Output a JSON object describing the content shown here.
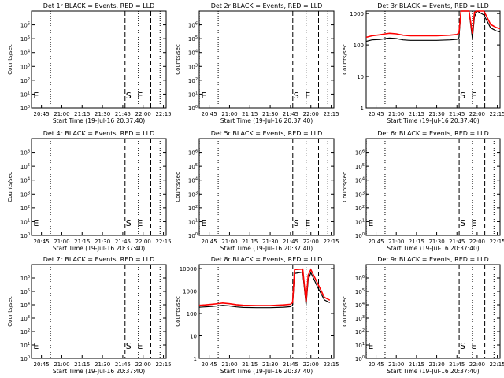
{
  "figure": {
    "panel_titles": [
      "Det 1r BLACK = Events, RED = LLD",
      "Det 2r BLACK = Events, RED = LLD",
      "Det 3r BLACK = Events, RED = LLD",
      "Det 4r BLACK = Events, RED = LLD",
      "Det 5r BLACK = Events, RED = LLD",
      "Det 6r BLACK = Events, RED = LLD",
      "Det 7r BLACK = Events, RED = LLD",
      "Det 8r BLACK = Events, RED = LLD",
      "Det 9r BLACK = Events, RED = LLD"
    ],
    "xlabel": "Start Time (19-Jul-16 20:37:40)",
    "ylabel": "Counts/sec",
    "colors": {
      "events": "#000000",
      "lld": "#ff0000",
      "axes": "#000000",
      "background": "#ffffff"
    },
    "marker_labels": {
      "start": "S",
      "end": "E"
    }
  },
  "chart_data": [
    {
      "panel": "Det 1r",
      "type": "line",
      "yscale": "log",
      "title": "Det 1r BLACK = Events, RED = LLD",
      "xlabel": "Start Time (19-Jul-16 20:37:40)",
      "ylabel": "Counts/sec",
      "xlim": [
        "20:37:40",
        "22:17:00"
      ],
      "xticks": [
        "20:45",
        "21:00",
        "21:15",
        "21:30",
        "21:45",
        "22:00",
        "22:15"
      ],
      "ylim": [
        1,
        10000000
      ],
      "yticks": [
        "10^0",
        "10^1",
        "10^2",
        "10^3",
        "10^4",
        "10^5",
        "10^6"
      ],
      "dotted_lines": [
        "20:37:45",
        "20:51:40",
        "21:56:30",
        "22:12:30"
      ],
      "dashed_lines": [
        "21:46:40",
        "22:05:40"
      ],
      "markers": [
        {
          "label": "S",
          "x": "21:46:40"
        },
        {
          "label": "E",
          "x": "21:55:10"
        },
        {
          "label": "E",
          "x": "20:38:30"
        }
      ],
      "series": []
    },
    {
      "panel": "Det 2r",
      "type": "line",
      "yscale": "log",
      "title": "Det 2r BLACK = Events, RED = LLD",
      "xlabel": "Start Time (19-Jul-16 20:37:40)",
      "ylabel": "Counts/sec",
      "xlim": [
        "20:37:40",
        "22:17:00"
      ],
      "xticks": [
        "20:45",
        "21:00",
        "21:15",
        "21:30",
        "21:45",
        "22:00",
        "22:15"
      ],
      "ylim": [
        1,
        10000000
      ],
      "yticks": [
        "10^0",
        "10^1",
        "10^2",
        "10^3",
        "10^4",
        "10^5",
        "10^6"
      ],
      "dotted_lines": [
        "20:37:45",
        "20:51:40",
        "21:56:30",
        "22:12:30"
      ],
      "dashed_lines": [
        "21:46:40",
        "22:05:40"
      ],
      "markers": [
        {
          "label": "S",
          "x": "21:46:40"
        },
        {
          "label": "E",
          "x": "21:55:10"
        },
        {
          "label": "E",
          "x": "20:38:30"
        }
      ],
      "series": []
    },
    {
      "panel": "Det 3r",
      "type": "line",
      "yscale": "log",
      "title": "Det 3r BLACK = Events, RED = LLD",
      "xlabel": "Start Time (19-Jul-16 20:37:40)",
      "ylabel": "Counts/sec",
      "xlim": [
        "20:37:40",
        "22:17:00"
      ],
      "xticks": [
        "20:45",
        "21:00",
        "21:15",
        "21:30",
        "21:45",
        "22:00",
        "22:15"
      ],
      "ylim": [
        1,
        1200
      ],
      "yticks": [
        "1",
        "10",
        "100",
        "1000"
      ],
      "dotted_lines": [
        "20:51:40",
        "21:56:30"
      ],
      "dashed_lines": [
        "21:46:40",
        "22:05:40"
      ],
      "markers": [
        {
          "label": "S",
          "x": "21:46:40"
        },
        {
          "label": "E",
          "x": "21:55:10"
        }
      ],
      "series": [
        {
          "name": "Events",
          "color": "#000000",
          "x": [
            "20:37:40",
            "20:42:00",
            "20:48:00",
            "20:52:00",
            "20:55:00",
            "21:00:00",
            "21:05:00",
            "21:10:00",
            "21:20:00",
            "21:30:00",
            "21:40:00",
            "21:45:00",
            "21:46:30",
            "21:48:00",
            "21:54:00",
            "21:56:30",
            "21:58:00",
            "22:00:00",
            "22:05:00",
            "22:10:00",
            "22:14:00",
            "22:17:00"
          ],
          "y": [
            130,
            145,
            150,
            160,
            165,
            160,
            145,
            140,
            140,
            140,
            145,
            150,
            170,
            1250,
            1250,
            160,
            800,
            1250,
            900,
            350,
            280,
            260
          ]
        },
        {
          "name": "LLD",
          "color": "#ff0000",
          "x": [
            "20:37:40",
            "20:42:00",
            "20:48:00",
            "20:52:00",
            "20:55:00",
            "21:00:00",
            "21:05:00",
            "21:10:00",
            "21:20:00",
            "21:30:00",
            "21:40:00",
            "21:45:00",
            "21:46:30",
            "21:48:00",
            "21:54:00",
            "21:56:30",
            "21:58:00",
            "22:00:00",
            "22:05:00",
            "22:10:00",
            "22:14:00",
            "22:17:00"
          ],
          "y": [
            175,
            195,
            210,
            225,
            235,
            225,
            205,
            195,
            195,
            195,
            205,
            215,
            240,
            1250,
            1250,
            230,
            1100,
            1250,
            1250,
            450,
            360,
            330
          ]
        }
      ]
    },
    {
      "panel": "Det 4r",
      "type": "line",
      "yscale": "log",
      "title": "Det 4r BLACK = Events, RED = LLD",
      "xlabel": "Start Time (19-Jul-16 20:37:40)",
      "ylabel": "Counts/sec",
      "xlim": [
        "20:37:40",
        "22:17:00"
      ],
      "xticks": [
        "20:45",
        "21:00",
        "21:15",
        "21:30",
        "21:45",
        "22:00",
        "22:15"
      ],
      "ylim": [
        1,
        10000000
      ],
      "yticks": [
        "10^0",
        "10^1",
        "10^2",
        "10^3",
        "10^4",
        "10^5",
        "10^6"
      ],
      "dotted_lines": [
        "20:37:45",
        "20:51:40",
        "21:56:30",
        "22:12:30"
      ],
      "dashed_lines": [
        "21:46:40",
        "22:05:40"
      ],
      "markers": [
        {
          "label": "S",
          "x": "21:46:40"
        },
        {
          "label": "E",
          "x": "21:55:10"
        },
        {
          "label": "E",
          "x": "20:38:30"
        }
      ],
      "series": []
    },
    {
      "panel": "Det 5r",
      "type": "line",
      "yscale": "log",
      "title": "Det 5r BLACK = Events, RED = LLD",
      "xlabel": "Start Time (19-Jul-16 20:37:40)",
      "ylabel": "Counts/sec",
      "xlim": [
        "20:37:40",
        "22:17:00"
      ],
      "xticks": [
        "20:45",
        "21:00",
        "21:15",
        "21:30",
        "21:45",
        "22:00",
        "22:15"
      ],
      "ylim": [
        1,
        10000000
      ],
      "yticks": [
        "10^0",
        "10^1",
        "10^2",
        "10^3",
        "10^4",
        "10^5",
        "10^6"
      ],
      "dotted_lines": [
        "20:37:45",
        "20:51:40",
        "21:56:30",
        "22:12:30"
      ],
      "dashed_lines": [
        "21:46:40",
        "22:05:40"
      ],
      "markers": [
        {
          "label": "S",
          "x": "21:46:40"
        },
        {
          "label": "E",
          "x": "21:55:10"
        },
        {
          "label": "E",
          "x": "20:38:30"
        }
      ],
      "series": []
    },
    {
      "panel": "Det 6r",
      "type": "line",
      "yscale": "log",
      "title": "Det 6r BLACK = Events, RED = LLD",
      "xlabel": "Start Time (19-Jul-16 20:37:40)",
      "ylabel": "Counts/sec",
      "xlim": [
        "20:37:40",
        "22:17:00"
      ],
      "xticks": [
        "20:45",
        "21:00",
        "21:15",
        "21:30",
        "21:45",
        "22:00",
        "22:15"
      ],
      "ylim": [
        1,
        10000000
      ],
      "yticks": [
        "10^0",
        "10^1",
        "10^2",
        "10^3",
        "10^4",
        "10^5",
        "10^6"
      ],
      "dotted_lines": [
        "20:37:45",
        "20:51:40",
        "21:56:30",
        "22:12:30"
      ],
      "dashed_lines": [
        "21:46:40",
        "22:05:40"
      ],
      "markers": [
        {
          "label": "S",
          "x": "21:46:40"
        },
        {
          "label": "E",
          "x": "21:55:10"
        },
        {
          "label": "E",
          "x": "20:38:30"
        }
      ],
      "series": []
    },
    {
      "panel": "Det 7r",
      "type": "line",
      "yscale": "log",
      "title": "Det 7r BLACK = Events, RED = LLD",
      "xlabel": "Start Time (19-Jul-16 20:37:40)",
      "ylabel": "Counts/sec",
      "xlim": [
        "20:37:40",
        "22:17:00"
      ],
      "xticks": [
        "20:45",
        "21:00",
        "21:15",
        "21:30",
        "21:45",
        "22:00",
        "22:15"
      ],
      "ylim": [
        1,
        10000000
      ],
      "yticks": [
        "10^0",
        "10^1",
        "10^2",
        "10^3",
        "10^4",
        "10^5",
        "10^6"
      ],
      "dotted_lines": [
        "20:37:45",
        "20:51:40",
        "21:56:30",
        "22:12:30"
      ],
      "dashed_lines": [
        "21:46:40",
        "22:05:40"
      ],
      "markers": [
        {
          "label": "S",
          "x": "21:46:40"
        },
        {
          "label": "E",
          "x": "21:55:10"
        },
        {
          "label": "E",
          "x": "20:38:30"
        }
      ],
      "series": []
    },
    {
      "panel": "Det 8r",
      "type": "line",
      "yscale": "log",
      "title": "Det 8r BLACK = Events, RED = LLD",
      "xlabel": "Start Time (19-Jul-16 20:37:40)",
      "ylabel": "Counts/sec",
      "xlim": [
        "20:37:40",
        "22:17:00"
      ],
      "xticks": [
        "20:45",
        "21:00",
        "21:15",
        "21:30",
        "21:45",
        "22:00",
        "22:15"
      ],
      "ylim": [
        1,
        15000
      ],
      "yticks": [
        "1",
        "10",
        "100",
        "1000",
        "10000"
      ],
      "dotted_lines": [
        "20:51:40",
        "21:56:30"
      ],
      "dashed_lines": [
        "21:46:40",
        "22:05:40"
      ],
      "markers": [],
      "series": [
        {
          "name": "Events",
          "color": "#000000",
          "x": [
            "20:37:40",
            "20:42:00",
            "20:47:00",
            "20:52:00",
            "20:55:00",
            "21:00:00",
            "21:05:00",
            "21:10:00",
            "21:20:00",
            "21:30:00",
            "21:40:00",
            "21:45:00",
            "21:46:30",
            "21:48:00",
            "21:54:00",
            "21:56:30",
            "21:58:00",
            "22:00:00",
            "22:05:00",
            "22:10:00",
            "22:14:00"
          ],
          "y": [
            190,
            195,
            205,
            220,
            230,
            215,
            195,
            185,
            180,
            180,
            190,
            200,
            230,
            6000,
            7000,
            240,
            3000,
            6500,
            1500,
            400,
            300
          ]
        },
        {
          "name": "LLD",
          "color": "#ff0000",
          "x": [
            "20:37:40",
            "20:42:00",
            "20:47:00",
            "20:52:00",
            "20:55:00",
            "21:00:00",
            "21:05:00",
            "21:10:00",
            "21:20:00",
            "21:30:00",
            "21:40:00",
            "21:45:00",
            "21:46:30",
            "21:48:00",
            "21:54:00",
            "21:56:30",
            "21:58:00",
            "22:00:00",
            "22:05:00",
            "22:10:00",
            "22:14:00"
          ],
          "y": [
            230,
            240,
            255,
            275,
            290,
            270,
            245,
            230,
            225,
            225,
            240,
            255,
            300,
            9000,
            9500,
            320,
            5000,
            9000,
            2200,
            520,
            390
          ]
        }
      ]
    },
    {
      "panel": "Det 9r",
      "type": "line",
      "yscale": "log",
      "title": "Det 9r BLACK = Events, RED = LLD",
      "xlabel": "Start Time (19-Jul-16 20:37:40)",
      "ylabel": "Counts/sec",
      "xlim": [
        "20:37:40",
        "22:17:00"
      ],
      "xticks": [
        "20:45",
        "21:00",
        "21:15",
        "21:30",
        "21:45",
        "22:00",
        "22:15"
      ],
      "ylim": [
        1,
        10000000
      ],
      "yticks": [
        "10^0",
        "10^1",
        "10^2",
        "10^3",
        "10^4",
        "10^5",
        "10^6"
      ],
      "dotted_lines": [
        "20:37:45",
        "20:51:40",
        "21:56:30",
        "22:12:30"
      ],
      "dashed_lines": [
        "21:46:40",
        "22:05:40"
      ],
      "markers": [
        {
          "label": "S",
          "x": "21:46:40"
        },
        {
          "label": "E",
          "x": "21:55:10"
        },
        {
          "label": "E",
          "x": "20:38:30"
        }
      ],
      "series": []
    }
  ]
}
